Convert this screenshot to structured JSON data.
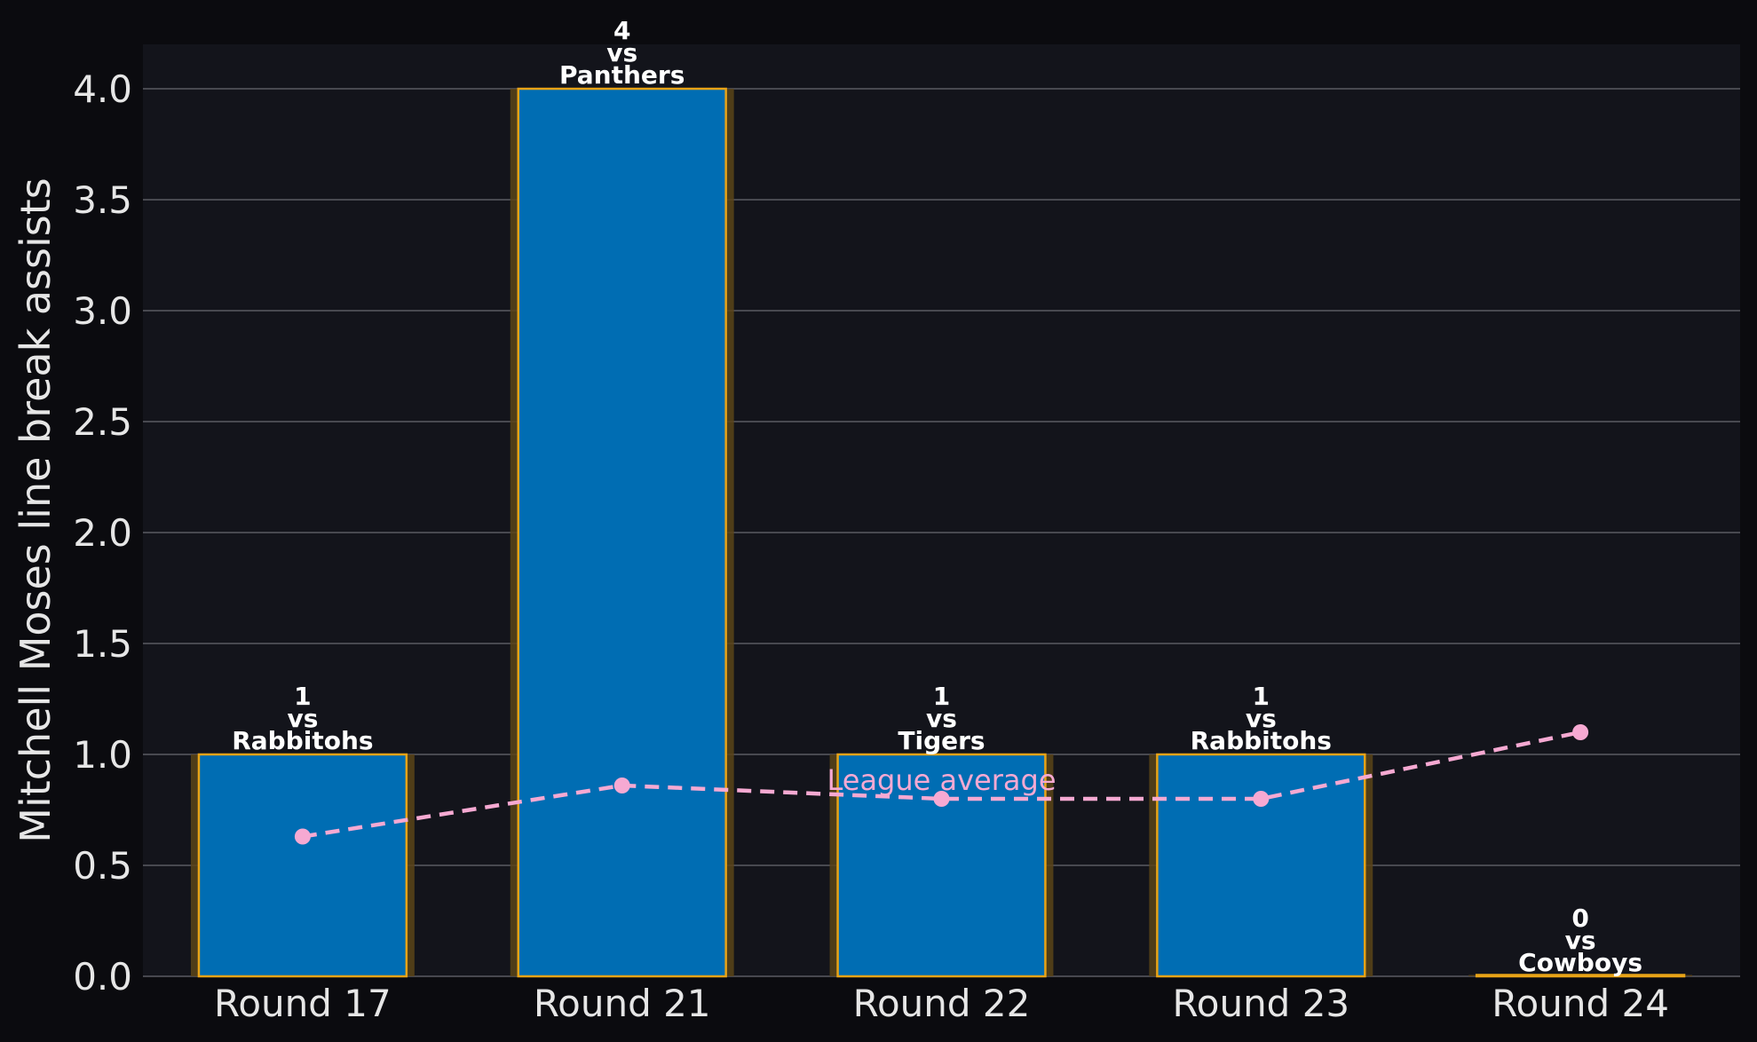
{
  "colors": {
    "page_background": "#0b0b0f",
    "plot_background": "#13141b",
    "grid": "#5a5b62",
    "bar_fill": "#006db3",
    "bar_edge": "#e8a317",
    "bar_glow": "#5a4418",
    "line": "#f6a9d2",
    "text": "#e6e6e6"
  },
  "chart_data": {
    "type": "bar",
    "title": "",
    "xlabel": "",
    "ylabel": "Mitchell Moses line break assists",
    "ylim": [
      0,
      4.2
    ],
    "yticks": [
      "0.0",
      "0.5",
      "1.0",
      "1.5",
      "2.0",
      "2.5",
      "3.0",
      "3.5",
      "4.0"
    ],
    "ytick_values": [
      0,
      0.5,
      1.0,
      1.5,
      2.0,
      2.5,
      3.0,
      3.5,
      4.0
    ],
    "grid": "horizontal",
    "categories": [
      "Round 17",
      "Round 21",
      "Round 22",
      "Round 23",
      "Round 24"
    ],
    "values": [
      1,
      4,
      1,
      1,
      0
    ],
    "bar_labels": [
      {
        "value": "1",
        "vs": "vs",
        "opponent": "Rabbitohs"
      },
      {
        "value": "4",
        "vs": "vs",
        "opponent": "Panthers"
      },
      {
        "value": "1",
        "vs": "vs",
        "opponent": "Tigers"
      },
      {
        "value": "1",
        "vs": "vs",
        "opponent": "Rabbitohs"
      },
      {
        "value": "0",
        "vs": "vs",
        "opponent": "Cowboys"
      }
    ],
    "line_series": {
      "name": "League average",
      "style": "dashed",
      "values": [
        0.63,
        0.86,
        0.8,
        0.8,
        1.1
      ]
    }
  }
}
